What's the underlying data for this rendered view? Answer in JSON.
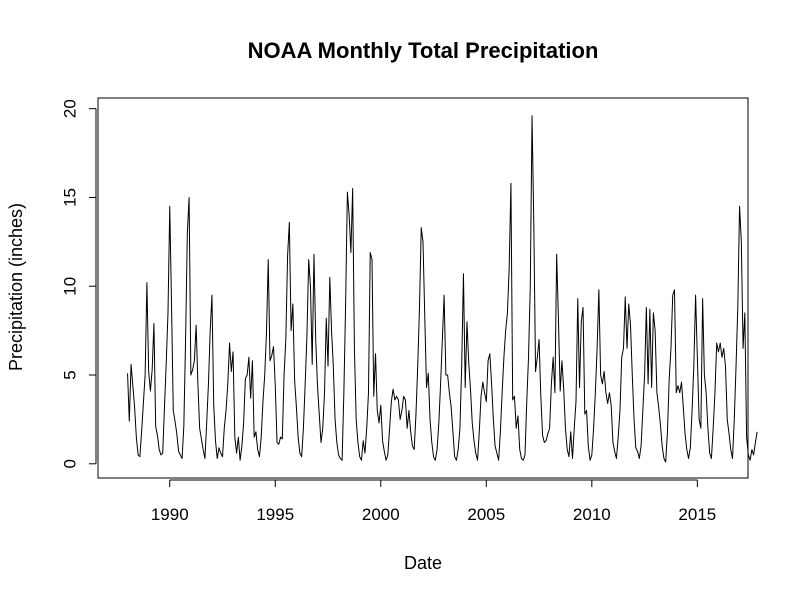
{
  "chart_data": {
    "type": "line",
    "title": "NOAA Monthly Total Precipitation",
    "xlabel": "Date",
    "ylabel": "Precipitation (inches)",
    "xlim": [
      1986.6,
      2017.4
    ],
    "ylim": [
      -0.8,
      20.6
    ],
    "xticks": [
      1990,
      1995,
      2000,
      2005,
      2010,
      2015
    ],
    "yticks": [
      0,
      5,
      10,
      15,
      20
    ],
    "grid": false,
    "legend": "none",
    "line_color": "#000000",
    "series": [
      {
        "x_start": 1988.0,
        "x_step_months": 1,
        "values": [
          5.1,
          2.4,
          5.6,
          4.4,
          3.2,
          1.5,
          0.5,
          0.4,
          1.8,
          3.4,
          5.0,
          10.2,
          5.2,
          4.1,
          5.3,
          7.9,
          2.1,
          1.6,
          0.8,
          0.5,
          0.6,
          3.2,
          5.7,
          8.5,
          14.5,
          9.0,
          3.0,
          2.4,
          1.7,
          0.7,
          0.5,
          0.3,
          2.1,
          7.0,
          13.0,
          15.0,
          5.0,
          5.3,
          5.8,
          7.8,
          4.5,
          2.0,
          1.4,
          0.8,
          0.3,
          2.3,
          4.5,
          7.5,
          9.5,
          3.3,
          1.3,
          0.3,
          0.9,
          0.6,
          0.4,
          2.0,
          3.0,
          4.5,
          6.8,
          5.2,
          6.3,
          1.5,
          0.6,
          1.5,
          0.2,
          1.0,
          2.3,
          4.8,
          5.0,
          6.0,
          3.7,
          5.8,
          1.5,
          1.8,
          0.8,
          0.4,
          1.5,
          3.5,
          5.0,
          7.4,
          11.5,
          5.8,
          6.1,
          6.6,
          4.4,
          1.2,
          1.1,
          1.5,
          1.4,
          5.0,
          7.0,
          11.7,
          13.6,
          7.5,
          9.0,
          4.7,
          3.2,
          1.5,
          0.6,
          0.4,
          2.0,
          4.5,
          7.2,
          11.5,
          10.0,
          5.6,
          11.8,
          7.0,
          4.4,
          2.8,
          1.2,
          2.0,
          4.0,
          8.2,
          5.5,
          10.5,
          7.5,
          5.5,
          2.5,
          1.2,
          0.5,
          0.3,
          0.2,
          4.0,
          9.0,
          15.3,
          14.0,
          11.9,
          15.5,
          6.5,
          2.5,
          1.2,
          0.4,
          0.2,
          1.3,
          0.6,
          2.0,
          4.0,
          11.9,
          11.5,
          3.8,
          6.2,
          3.0,
          2.3,
          3.3,
          1.3,
          0.7,
          0.2,
          0.5,
          2.0,
          3.5,
          4.2,
          3.6,
          3.8,
          3.6,
          2.5,
          3.0,
          3.8,
          3.6,
          2.0,
          3.0,
          1.8,
          1.0,
          0.8,
          2.8,
          5.5,
          8.8,
          13.3,
          12.5,
          8.3,
          4.3,
          5.1,
          2.5,
          1.2,
          0.4,
          0.2,
          0.8,
          2.3,
          4.5,
          7.0,
          9.5,
          5.0,
          5.0,
          4.0,
          3.2,
          1.8,
          0.4,
          0.2,
          0.8,
          2.0,
          5.5,
          10.7,
          4.3,
          8.0,
          5.7,
          4.2,
          2.3,
          1.3,
          0.6,
          0.2,
          1.8,
          3.8,
          4.6,
          4.0,
          3.5,
          5.8,
          6.2,
          4.5,
          2.5,
          1.0,
          0.6,
          0.2,
          1.8,
          4.0,
          6.0,
          7.5,
          8.5,
          11.0,
          15.8,
          3.6,
          3.8,
          2.0,
          2.7,
          0.8,
          0.3,
          0.2,
          0.5,
          3.5,
          6.0,
          10.0,
          19.6,
          13.5,
          5.2,
          6.0,
          7.0,
          3.8,
          1.6,
          1.2,
          1.3,
          1.7,
          2.0,
          4.5,
          6.0,
          4.0,
          11.8,
          8.2,
          4.1,
          5.8,
          4.2,
          2.0,
          0.8,
          0.4,
          1.8,
          0.3,
          2.0,
          3.5,
          9.3,
          4.3,
          8.0,
          8.8,
          2.8,
          3.0,
          1.0,
          0.2,
          0.5,
          2.0,
          4.0,
          6.5,
          9.8,
          5.0,
          4.5,
          5.2,
          4.0,
          3.4,
          4.0,
          3.3,
          1.2,
          0.7,
          0.3,
          1.5,
          3.0,
          6.0,
          6.5,
          9.4,
          6.5,
          9.0,
          7.8,
          5.0,
          2.5,
          0.9,
          0.7,
          0.3,
          1.0,
          3.0,
          5.0,
          8.8,
          4.5,
          8.7,
          4.3,
          8.5,
          7.5,
          4.0,
          3.2,
          2.2,
          1.0,
          0.3,
          0.1,
          1.8,
          4.8,
          6.5,
          9.5,
          9.8,
          4.0,
          4.4,
          4.0,
          4.6,
          3.2,
          1.7,
          0.8,
          0.3,
          0.9,
          3.0,
          5.5,
          9.5,
          6.0,
          2.5,
          2.0,
          9.3,
          5.0,
          4.0,
          2.0,
          0.6,
          0.3,
          2.0,
          4.0,
          6.8,
          6.3,
          6.8,
          6.0,
          6.5,
          5.5,
          2.5,
          1.7,
          0.8,
          0.3,
          2.5,
          5.5,
          8.8,
          14.5,
          12.5,
          6.5,
          8.5,
          1.5,
          0.5,
          0.2,
          0.8,
          0.5,
          1.2,
          1.8
        ]
      }
    ]
  }
}
